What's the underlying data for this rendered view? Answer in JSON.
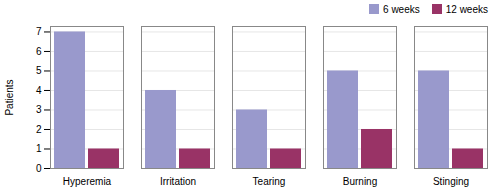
{
  "chart_data": {
    "type": "bar",
    "ylabel": "Patients",
    "categories": [
      "Hyperemia",
      "Irritation",
      "Tearing",
      "Burning",
      "Stinging"
    ],
    "series": [
      {
        "name": "6 weeks",
        "color": "#9999cc",
        "values": [
          7,
          4,
          3,
          5,
          5
        ]
      },
      {
        "name": "12 weeks",
        "color": "#993366",
        "values": [
          1,
          1,
          1,
          2,
          1
        ]
      }
    ],
    "ylim": [
      0,
      7.28
    ],
    "yticks": [
      0,
      1,
      2,
      3,
      4,
      5,
      6,
      7
    ],
    "grid": true,
    "legend": "upper right"
  }
}
